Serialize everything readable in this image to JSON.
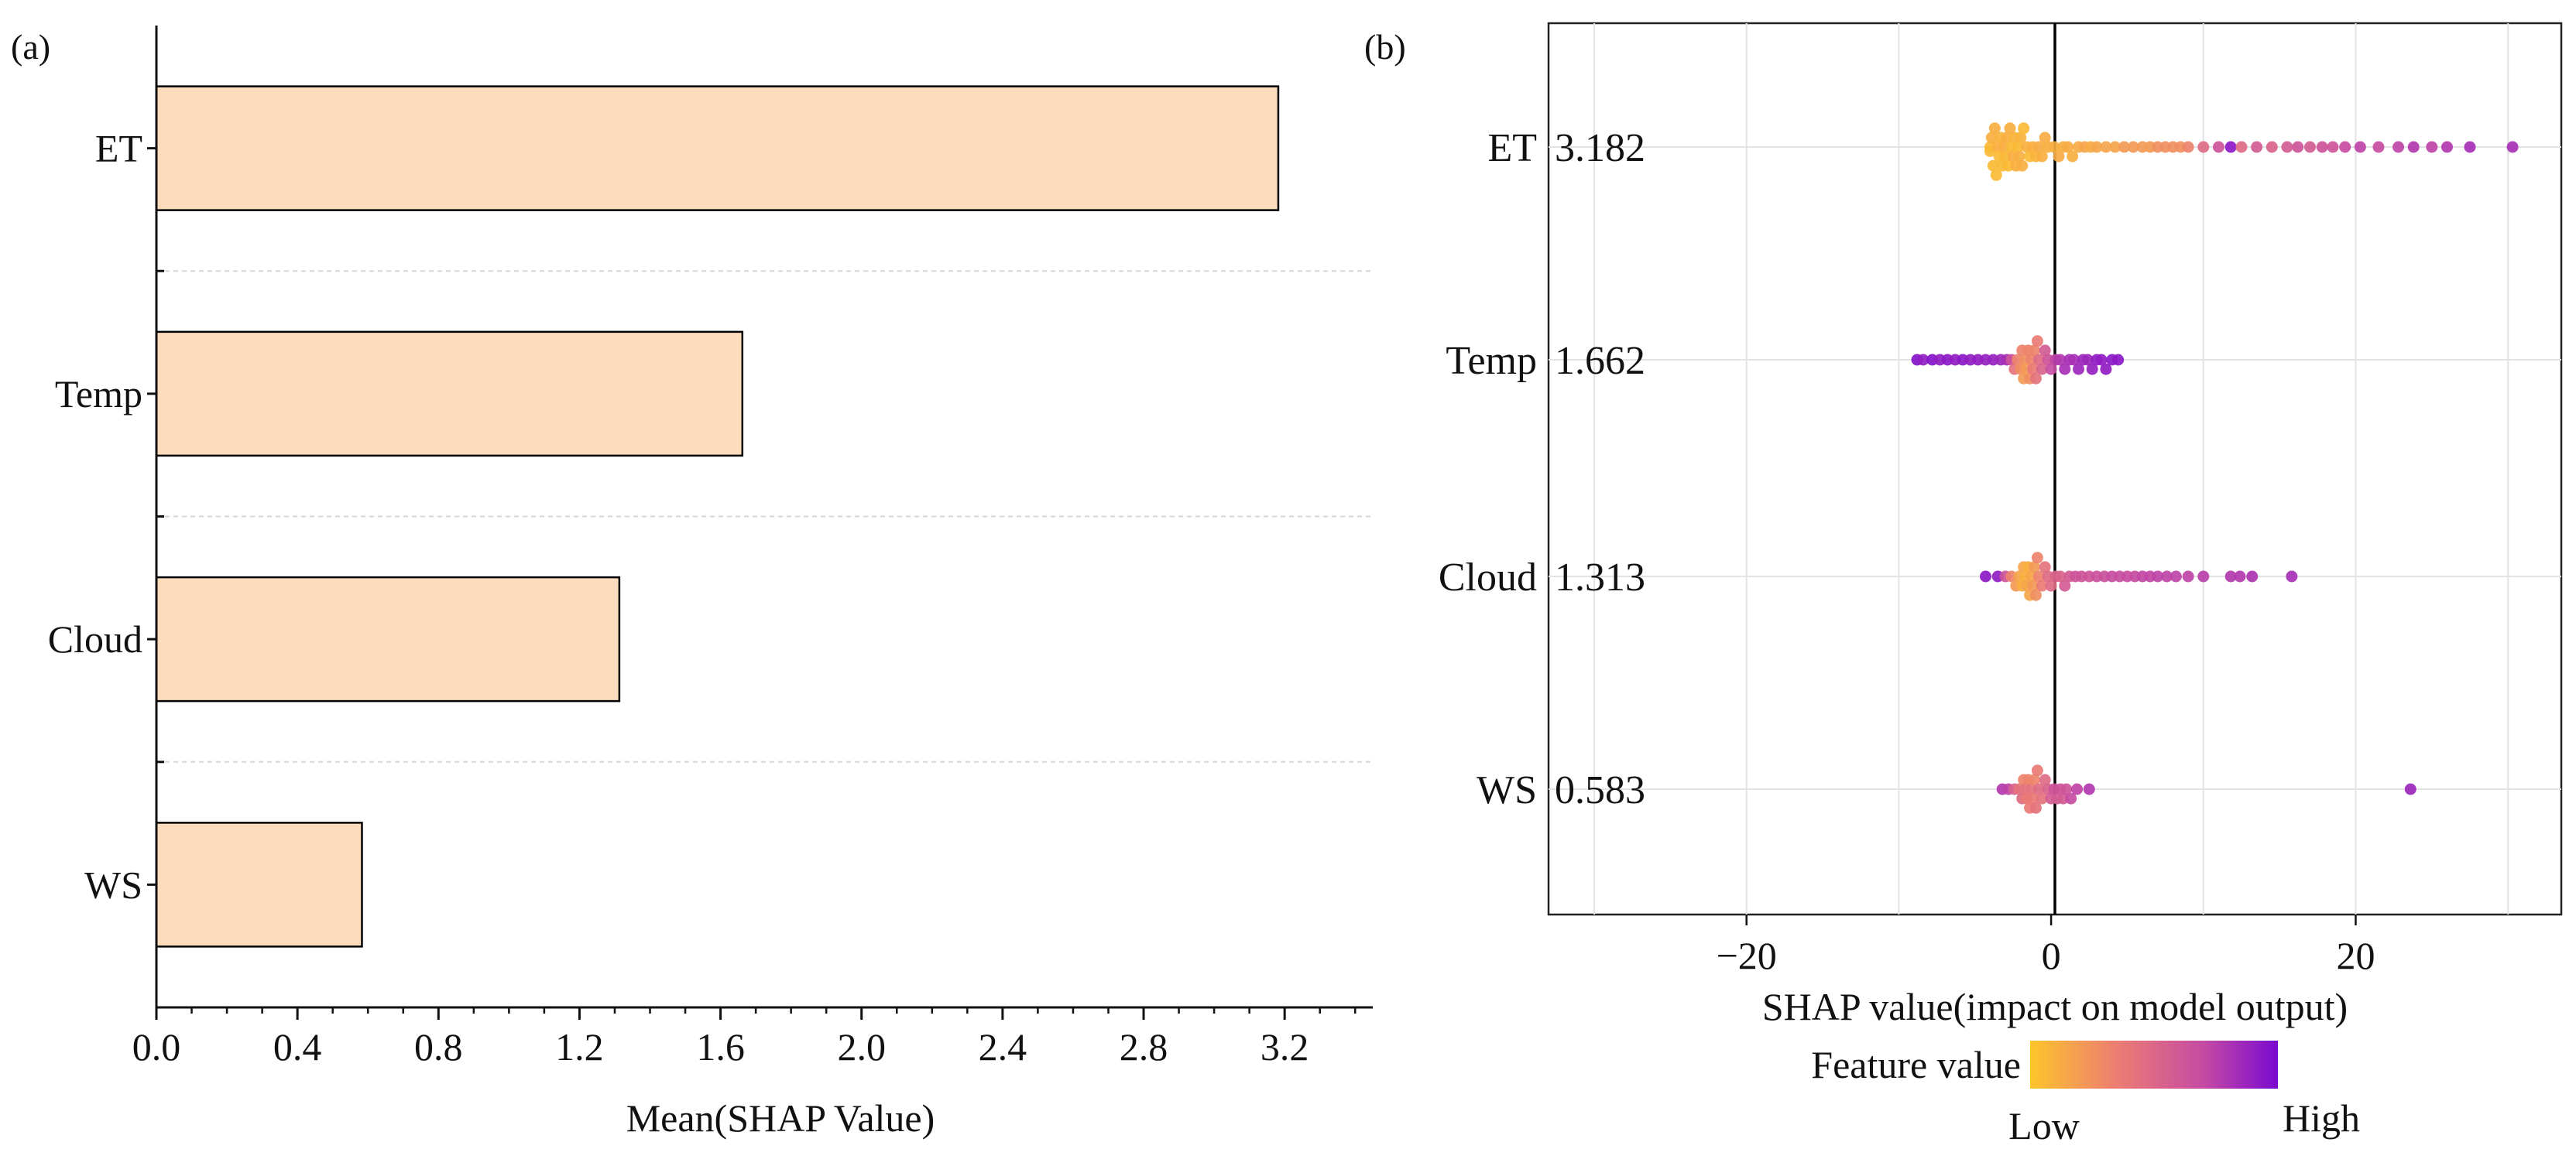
{
  "chart_data": [
    {
      "panel": "(a)",
      "type": "bar",
      "orientation": "horizontal",
      "categories": [
        "ET",
        "Temp",
        "Cloud",
        "WS"
      ],
      "values": [
        3.182,
        1.662,
        1.313,
        0.583
      ],
      "xlabel": "Mean(SHAP Value)",
      "xticks": [
        "0.0",
        "0.4",
        "0.8",
        "1.2",
        "1.6",
        "2.0",
        "2.4",
        "2.8",
        "3.2"
      ],
      "xlim": [
        0,
        3.45
      ],
      "bar_color": "#fddcbd",
      "grid": "dashed horizontal separators"
    },
    {
      "panel": "(b)",
      "type": "scatter",
      "subtype": "beeswarm",
      "features": [
        {
          "name": "ET",
          "mean_abs_shap": "3.182"
        },
        {
          "name": "Temp",
          "mean_abs_shap": "1.662"
        },
        {
          "name": "Cloud",
          "mean_abs_shap": "1.313"
        },
        {
          "name": "WS",
          "mean_abs_shap": "0.583"
        }
      ],
      "xlabel": "SHAP value(impact on model output)",
      "xticks": [
        "−20",
        "0",
        "20"
      ],
      "xlim": [
        -33,
        33.5
      ],
      "colorbar": {
        "label": "Feature value",
        "low": "Low",
        "high": "High",
        "colors": [
          "#fdc52a",
          "#ec7d73",
          "#c54aa3",
          "#7a0ad0"
        ]
      },
      "grid": "on",
      "points": {
        "ET": [
          [
            -4,
            0.05
          ],
          [
            -4,
            0.05
          ],
          [
            -3.9,
            0.1
          ],
          [
            -3.8,
            0.05
          ],
          [
            -3.7,
            0.1
          ],
          [
            -3.6,
            0.05
          ],
          [
            -3.5,
            0.1
          ],
          [
            -3.4,
            0.05
          ],
          [
            -3.3,
            0.08
          ],
          [
            -3.2,
            0.05
          ],
          [
            -3.1,
            0.1
          ],
          [
            -3,
            0.06
          ],
          [
            -2.9,
            0.1
          ],
          [
            -2.8,
            0.05
          ],
          [
            -2.7,
            0.1
          ],
          [
            -2.6,
            0.05
          ],
          [
            -2.5,
            0.1
          ],
          [
            -2.4,
            0.08
          ],
          [
            -2.3,
            0.1
          ],
          [
            -2.2,
            0.05
          ],
          [
            -2.1,
            0.1
          ],
          [
            -2,
            0.08
          ],
          [
            -1.9,
            0.1
          ],
          [
            -1.8,
            0.05
          ],
          [
            -1.6,
            0.1
          ],
          [
            -1.4,
            0.05
          ],
          [
            -1.2,
            0.1
          ],
          [
            -1,
            0.08
          ],
          [
            -0.8,
            0.12
          ],
          [
            -0.6,
            0.1
          ],
          [
            -0.4,
            0.12
          ],
          [
            -0.2,
            0.1
          ],
          [
            0.2,
            0.1
          ],
          [
            0.5,
            0.12
          ],
          [
            0.8,
            0.1
          ],
          [
            1.1,
            0.12
          ],
          [
            1.4,
            0.1
          ],
          [
            1.8,
            0.12
          ],
          [
            2.2,
            0.15
          ],
          [
            2.6,
            0.12
          ],
          [
            3,
            0.15
          ],
          [
            3.6,
            0.15
          ],
          [
            4.2,
            0.15
          ],
          [
            4.8,
            0.2
          ],
          [
            5.4,
            0.2
          ],
          [
            6,
            0.2
          ],
          [
            6.5,
            0.2
          ],
          [
            7,
            0.25
          ],
          [
            7.5,
            0.25
          ],
          [
            8,
            0.25
          ],
          [
            8.5,
            0.25
          ],
          [
            9,
            0.3
          ],
          [
            10,
            0.45
          ],
          [
            11,
            0.6
          ],
          [
            11.8,
            0.92
          ],
          [
            12.5,
            0.45
          ],
          [
            13.5,
            0.55
          ],
          [
            14.5,
            0.5
          ],
          [
            15.5,
            0.55
          ],
          [
            16.2,
            0.6
          ],
          [
            17,
            0.55
          ],
          [
            17.8,
            0.6
          ],
          [
            18.5,
            0.6
          ],
          [
            19.3,
            0.65
          ],
          [
            20.3,
            0.7
          ],
          [
            21.5,
            0.65
          ],
          [
            22.8,
            0.7
          ],
          [
            23.8,
            0.75
          ],
          [
            25,
            0.7
          ],
          [
            26,
            0.75
          ],
          [
            27.5,
            0.8
          ],
          [
            30.3,
            0.8
          ]
        ],
        "Temp": [
          [
            -8.8,
            0.95
          ],
          [
            -8.4,
            0.9
          ],
          [
            -7.8,
            0.95
          ],
          [
            -7.3,
            0.9
          ],
          [
            -6.8,
            0.92
          ],
          [
            -6.3,
            0.9
          ],
          [
            -5.8,
            0.92
          ],
          [
            -5.3,
            0.9
          ],
          [
            -4.8,
            0.9
          ],
          [
            -4.3,
            0.88
          ],
          [
            -3.8,
            0.88
          ],
          [
            -3.3,
            0.85
          ],
          [
            -2.9,
            0.8
          ],
          [
            -2.6,
            0.6
          ],
          [
            -2.4,
            0.4
          ],
          [
            -2.2,
            0.3
          ],
          [
            -2,
            0.25
          ],
          [
            -1.9,
            0.3
          ],
          [
            -1.8,
            0.2
          ],
          [
            -1.7,
            0.25
          ],
          [
            -1.6,
            0.2
          ],
          [
            -1.5,
            0.3
          ],
          [
            -1.4,
            0.25
          ],
          [
            -1.3,
            0.3
          ],
          [
            -1.2,
            0.35
          ],
          [
            -1.1,
            0.3
          ],
          [
            -1,
            0.4
          ],
          [
            -0.9,
            0.35
          ],
          [
            -0.8,
            0.45
          ],
          [
            -0.6,
            0.5
          ],
          [
            -0.4,
            0.55
          ],
          [
            -0.2,
            0.6
          ],
          [
            0,
            0.65
          ],
          [
            0.3,
            0.7
          ],
          [
            0.6,
            0.75
          ],
          [
            0.9,
            0.8
          ],
          [
            1.2,
            0.8
          ],
          [
            1.5,
            0.8
          ],
          [
            1.8,
            0.85
          ],
          [
            2.1,
            0.85
          ],
          [
            2.4,
            0.85
          ],
          [
            2.7,
            0.88
          ],
          [
            3,
            0.9
          ],
          [
            3.3,
            0.9
          ],
          [
            3.6,
            0.9
          ],
          [
            4,
            0.92
          ],
          [
            4.4,
            0.92
          ]
        ],
        "Cloud": [
          [
            -4.3,
            0.92
          ],
          [
            -3.5,
            0.9
          ],
          [
            -3,
            0.6
          ],
          [
            -2.6,
            0.3
          ],
          [
            -2.3,
            0.2
          ],
          [
            -2.1,
            0.15
          ],
          [
            -1.9,
            0.1
          ],
          [
            -1.8,
            0.15
          ],
          [
            -1.7,
            0.1
          ],
          [
            -1.6,
            0.15
          ],
          [
            -1.5,
            0.1
          ],
          [
            -1.4,
            0.15
          ],
          [
            -1.3,
            0.15
          ],
          [
            -1.2,
            0.2
          ],
          [
            -1.1,
            0.2
          ],
          [
            -1,
            0.25
          ],
          [
            -0.9,
            0.3
          ],
          [
            -0.8,
            0.3
          ],
          [
            -0.6,
            0.35
          ],
          [
            -0.4,
            0.4
          ],
          [
            -0.2,
            0.45
          ],
          [
            0,
            0.45
          ],
          [
            0.3,
            0.5
          ],
          [
            0.6,
            0.5
          ],
          [
            0.9,
            0.55
          ],
          [
            1.2,
            0.55
          ],
          [
            1.6,
            0.6
          ],
          [
            2,
            0.6
          ],
          [
            2.5,
            0.6
          ],
          [
            3,
            0.62
          ],
          [
            3.5,
            0.62
          ],
          [
            4,
            0.65
          ],
          [
            4.5,
            0.65
          ],
          [
            5,
            0.65
          ],
          [
            5.5,
            0.65
          ],
          [
            6,
            0.68
          ],
          [
            6.5,
            0.68
          ],
          [
            7,
            0.7
          ],
          [
            7.6,
            0.7
          ],
          [
            8.2,
            0.7
          ],
          [
            9,
            0.7
          ],
          [
            10,
            0.72
          ],
          [
            11.8,
            0.75
          ],
          [
            12.4,
            0.75
          ],
          [
            13.2,
            0.78
          ],
          [
            15.8,
            0.8
          ]
        ],
        "WS": [
          [
            -3.2,
            0.75
          ],
          [
            -2.8,
            0.7
          ],
          [
            -2.4,
            0.5
          ],
          [
            -2.1,
            0.4
          ],
          [
            -1.9,
            0.45
          ],
          [
            -1.8,
            0.3
          ],
          [
            -1.7,
            0.4
          ],
          [
            -1.6,
            0.35
          ],
          [
            -1.5,
            0.3
          ],
          [
            -1.4,
            0.35
          ],
          [
            -1.3,
            0.4
          ],
          [
            -1.2,
            0.35
          ],
          [
            -1.1,
            0.3
          ],
          [
            -1,
            0.4
          ],
          [
            -0.9,
            0.35
          ],
          [
            -0.8,
            0.45
          ],
          [
            -0.6,
            0.4
          ],
          [
            -0.4,
            0.45
          ],
          [
            -0.2,
            0.5
          ],
          [
            0,
            0.55
          ],
          [
            0.2,
            0.6
          ],
          [
            0.4,
            0.55
          ],
          [
            0.6,
            0.6
          ],
          [
            0.8,
            0.55
          ],
          [
            1,
            0.6
          ],
          [
            1.3,
            0.65
          ],
          [
            1.7,
            0.7
          ],
          [
            2.5,
            0.75
          ],
          [
            23.6,
            0.85
          ]
        ]
      }
    }
  ]
}
